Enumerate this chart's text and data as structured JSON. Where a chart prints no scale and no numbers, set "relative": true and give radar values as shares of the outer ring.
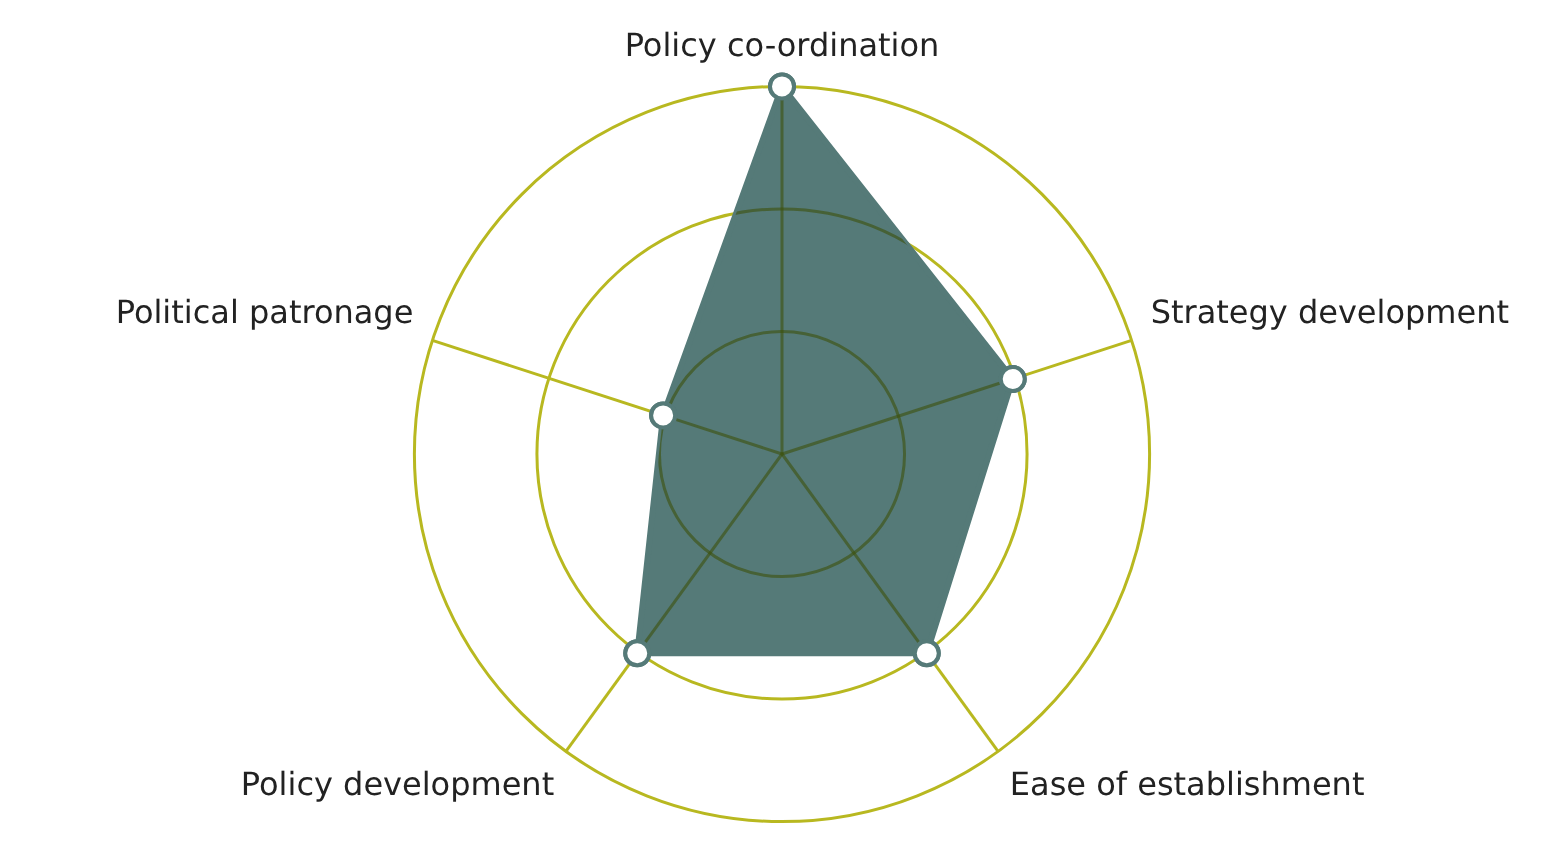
{
  "chart_data": {
    "type": "radar",
    "relative": true,
    "categories": [
      "Policy co-ordination",
      "Strategy development",
      "Ease of establishment",
      "Policy development",
      "Political patronage"
    ],
    "series": [
      {
        "color": "#557a78",
        "values": [
          1,
          0.66,
          0.67,
          0.67,
          0.34
        ]
      }
    ],
    "grid": true,
    "marker": "circle"
  }
}
